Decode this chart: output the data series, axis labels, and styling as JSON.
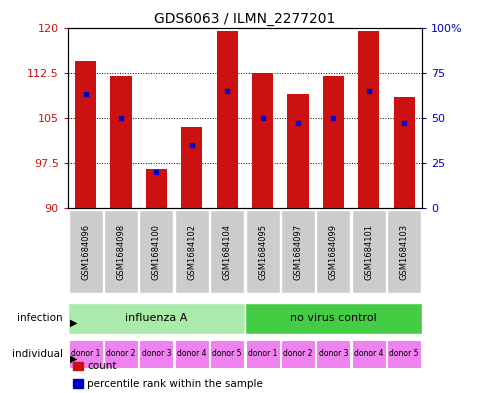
{
  "title": "GDS6063 / ILMN_2277201",
  "samples": [
    "GSM1684096",
    "GSM1684098",
    "GSM1684100",
    "GSM1684102",
    "GSM1684104",
    "GSM1684095",
    "GSM1684097",
    "GSM1684099",
    "GSM1684101",
    "GSM1684103"
  ],
  "counts": [
    114.5,
    112.0,
    96.5,
    103.5,
    119.5,
    112.5,
    109.0,
    112.0,
    119.5,
    108.5
  ],
  "percentiles": [
    63,
    50,
    20,
    35,
    65,
    50,
    47,
    50,
    65,
    47
  ],
  "ylim": [
    90,
    120
  ],
  "yticks": [
    90,
    97.5,
    105,
    112.5,
    120
  ],
  "right_yticks": [
    0,
    25,
    50,
    75,
    100
  ],
  "right_ytick_labels": [
    "0",
    "25",
    "50",
    "75",
    "100%"
  ],
  "infection_groups": [
    {
      "label": "influenza A",
      "start": 0,
      "end": 5,
      "color": "#aaeaaa"
    },
    {
      "label": "no virus control",
      "start": 5,
      "end": 10,
      "color": "#44cc44"
    }
  ],
  "individual_labels": [
    "donor 1",
    "donor 2",
    "donor 3",
    "donor 4",
    "donor 5",
    "donor 1",
    "donor 2",
    "donor 3",
    "donor 4",
    "donor 5"
  ],
  "individual_color": "#EE82EE",
  "bar_color": "#CC1111",
  "percentile_color": "#0000CC",
  "grid_color": "#000000",
  "sample_box_color": "#cccccc",
  "left_label_color": "#CC1111",
  "right_label_color": "#0000CC",
  "legend_items": [
    {
      "label": "count",
      "color": "#CC1111"
    },
    {
      "label": "percentile rank within the sample",
      "color": "#0000CC"
    }
  ]
}
